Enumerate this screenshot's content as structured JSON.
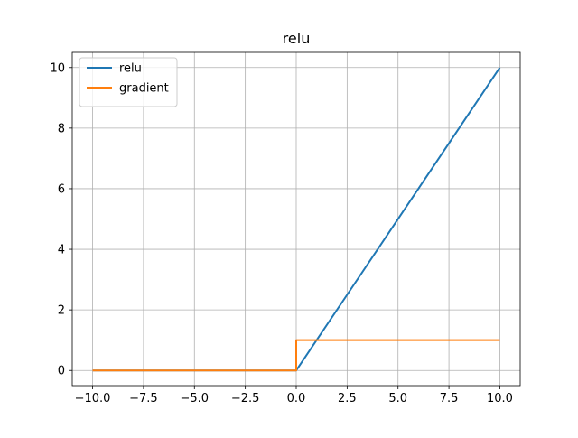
{
  "colors": {
    "background": "#ffffff",
    "grid": "#b0b0b0",
    "axis": "#000000",
    "relu_line": "#1f77b4",
    "gradient_line": "#ff7f0e"
  },
  "chart_data": {
    "type": "line",
    "title": "relu",
    "xlabel": "",
    "ylabel": "",
    "xlim": [
      -11,
      11
    ],
    "ylim": [
      -0.5,
      10.5
    ],
    "grid": true,
    "legend_position": "top-left",
    "x_ticks": [
      -10,
      -7.5,
      -5,
      -2.5,
      0,
      2.5,
      5,
      7.5,
      10
    ],
    "x_tick_labels": [
      "−10.0",
      "−7.5",
      "−5.0",
      "−2.5",
      "0.0",
      "2.5",
      "5.0",
      "7.5",
      "10.0"
    ],
    "y_ticks": [
      0,
      2,
      4,
      6,
      8,
      10
    ],
    "y_tick_labels": [
      "0",
      "2",
      "4",
      "6",
      "8",
      "10"
    ],
    "series": [
      {
        "name": "relu",
        "color": "#1f77b4",
        "x": [
          -10,
          0,
          10
        ],
        "y": [
          0,
          0,
          10
        ]
      },
      {
        "name": "gradient",
        "color": "#ff7f0e",
        "x": [
          -10,
          0,
          0,
          10
        ],
        "y": [
          0,
          0,
          1,
          1
        ]
      }
    ]
  }
}
